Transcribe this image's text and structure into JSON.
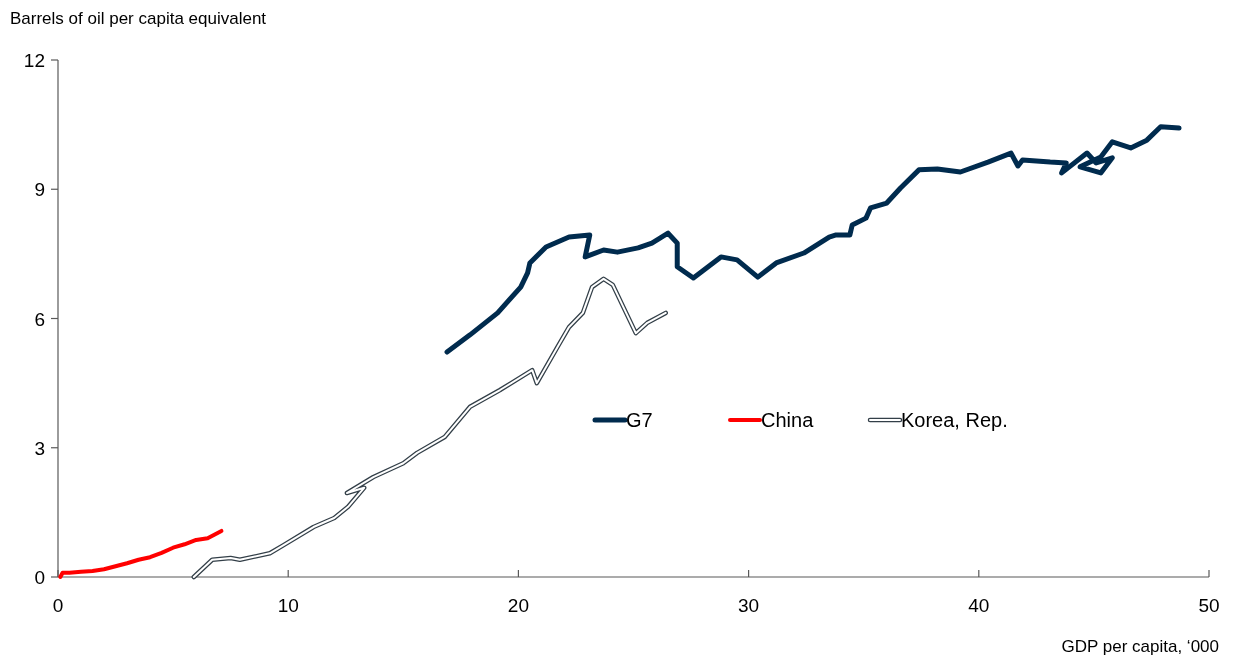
{
  "chart_data": {
    "type": "line",
    "xlabel": "GDP per capita, ‘000",
    "ylabel": "Barrels of oil per capita equivalent",
    "xlim": [
      0,
      50
    ],
    "xticks": [
      0,
      10,
      20,
      30,
      40,
      50
    ],
    "ylim": [
      0,
      12
    ],
    "yticks": [
      0,
      3,
      6,
      9,
      12
    ],
    "grid": false,
    "legend": "center",
    "marker": "none",
    "line_style": "solid",
    "series": [
      {
        "name": "G7",
        "color": "#002b4e",
        "x": [
          16.9,
          17.9,
          19.1,
          20.1,
          20.4,
          20.5,
          21.2,
          22.2,
          23.1,
          22.9,
          23.7,
          24.3,
          25.2,
          25.8,
          26.5,
          26.9,
          26.9,
          26.9,
          27.6,
          28.8,
          29.5,
          30.4,
          31.2,
          32.4,
          33.5,
          33.8,
          34.4,
          34.5,
          35.1,
          35.3,
          36.0,
          36.6,
          37.4,
          38.2,
          39.2,
          40.4,
          41.4,
          41.7,
          41.9,
          43.1,
          43.8,
          43.6,
          44.7,
          45.1,
          45.8,
          45.3,
          44.4,
          45.3,
          45.8,
          46.6,
          47.3,
          47.9,
          48.7
        ],
        "values": [
          5.22,
          5.62,
          6.13,
          6.73,
          7.06,
          7.29,
          7.66,
          7.89,
          7.94,
          7.43,
          7.59,
          7.54,
          7.64,
          7.75,
          7.98,
          7.75,
          7.52,
          7.2,
          6.94,
          7.43,
          7.36,
          6.96,
          7.29,
          7.52,
          7.89,
          7.94,
          7.94,
          8.17,
          8.33,
          8.57,
          8.68,
          9.03,
          9.45,
          9.47,
          9.4,
          9.63,
          9.84,
          9.54,
          9.68,
          9.63,
          9.61,
          9.38,
          9.84,
          9.61,
          9.73,
          9.38,
          9.52,
          9.75,
          10.1,
          9.96,
          10.14,
          10.45,
          10.42
        ]
      },
      {
        "name": "China",
        "color": "#ff0000",
        "x": [
          0.1,
          0.2,
          0.5,
          1,
          1.5,
          2,
          2.5,
          3,
          3.5,
          4,
          4.5,
          5,
          5.5,
          6,
          6.5,
          7.1
        ],
        "values": [
          0,
          0.1,
          0.1,
          0.12,
          0.14,
          0.18,
          0.25,
          0.32,
          0.4,
          0.46,
          0.56,
          0.68,
          0.76,
          0.86,
          0.9,
          1.07
        ]
      },
      {
        "name": "Korea, Rep.",
        "color": "#333f48",
        "x": [
          5.9,
          6.7,
          7.5,
          7.9,
          9.2,
          9.8,
          11.1,
          12,
          12.6,
          13.3,
          12.55,
          13.7,
          15,
          15.6,
          16.8,
          17.9,
          19.2,
          20.6,
          20.8,
          21.7,
          22.2,
          22.8,
          23.2,
          23.7,
          24.1,
          25.1,
          25.6,
          26.4
        ],
        "values": [
          0,
          0.4,
          0.44,
          0.4,
          0.55,
          0.74,
          1.16,
          1.37,
          1.63,
          2.07,
          1.95,
          2.32,
          2.64,
          2.88,
          3.25,
          3.95,
          4.34,
          4.8,
          4.5,
          5.34,
          5.8,
          6.13,
          6.73,
          6.92,
          6.78,
          5.66,
          5.9,
          6.13
        ]
      }
    ]
  }
}
